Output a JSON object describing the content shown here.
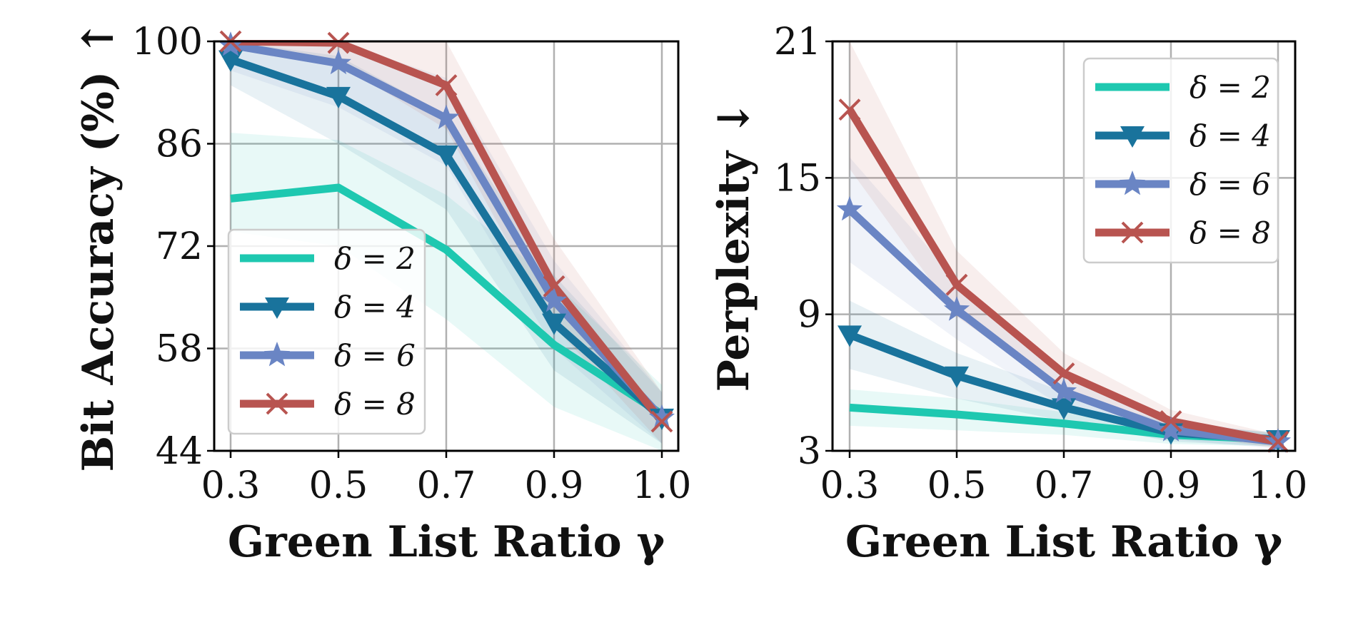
{
  "chart_data": [
    {
      "type": "line",
      "id": "bit-accuracy",
      "title": "",
      "xlabel": "Green List Ratio γ",
      "ylabel": "Bit Accuracy (%) ↑",
      "x": [
        0.3,
        0.5,
        0.7,
        0.9,
        1.0
      ],
      "x_tick_labels": [
        "0.3",
        "0.5",
        "0.7",
        "0.9",
        "1.0"
      ],
      "ylim": [
        44,
        100
      ],
      "y_ticks": [
        44,
        58,
        72,
        86,
        100
      ],
      "grid": true,
      "legend": "lower-left",
      "series": [
        {
          "name": "δ = 2",
          "color": "#1ec8b0",
          "marker": "none",
          "values": [
            78.5,
            80.0,
            71.5,
            58.5,
            49.0
          ],
          "band": [
            [
              74.0,
              87.5
            ],
            [
              72.0,
              86.5
            ],
            [
              62.0,
              79.0
            ],
            [
              50.0,
              67.0
            ],
            [
              44.0,
              53.0
            ]
          ]
        },
        {
          "name": "δ = 4",
          "color": "#19739c",
          "marker": "triangle-down",
          "values": [
            97.5,
            92.5,
            84.5,
            61.5,
            48.5
          ],
          "band": [
            [
              94.0,
              100.0
            ],
            [
              86.0,
              98.0
            ],
            [
              77.0,
              90.0
            ],
            [
              55.0,
              68.0
            ],
            [
              45.0,
              52.0
            ]
          ]
        },
        {
          "name": "δ = 6",
          "color": "#6a85c4",
          "marker": "star",
          "values": [
            99.5,
            97.0,
            89.5,
            64.5,
            48.5
          ],
          "band": [
            [
              96.0,
              100.0
            ],
            [
              91.0,
              100.0
            ],
            [
              83.0,
              95.0
            ],
            [
              58.0,
              70.0
            ],
            [
              45.0,
              52.0
            ]
          ]
        },
        {
          "name": "δ = 8",
          "color": "#b85450",
          "marker": "x",
          "values": [
            100.0,
            99.8,
            94.0,
            66.5,
            48.0
          ],
          "band": [
            [
              99.0,
              100.0
            ],
            [
              97.0,
              100.0
            ],
            [
              88.0,
              100.0
            ],
            [
              61.0,
              73.0
            ],
            [
              45.0,
              52.0
            ]
          ]
        }
      ]
    },
    {
      "type": "line",
      "id": "perplexity",
      "title": "",
      "xlabel": "Green List Ratio γ",
      "ylabel": "Perplexity ↓",
      "x": [
        0.3,
        0.5,
        0.7,
        0.9,
        1.0
      ],
      "x_tick_labels": [
        "0.3",
        "0.5",
        "0.7",
        "0.9",
        "1.0"
      ],
      "ylim": [
        3,
        21
      ],
      "y_ticks": [
        3,
        9,
        15,
        21
      ],
      "grid": true,
      "legend": "upper-right",
      "series": [
        {
          "name": "δ = 2",
          "color": "#1ec8b0",
          "marker": "none",
          "values": [
            4.9,
            4.6,
            4.2,
            3.7,
            3.5
          ],
          "band": [
            [
              4.1,
              5.7
            ],
            [
              3.9,
              5.3
            ],
            [
              3.7,
              4.7
            ],
            [
              3.3,
              4.1
            ],
            [
              3.2,
              3.8
            ]
          ]
        },
        {
          "name": "δ = 4",
          "color": "#19739c",
          "marker": "triangle-down",
          "values": [
            8.1,
            6.3,
            4.9,
            3.8,
            3.5
          ],
          "band": [
            [
              6.6,
              9.6
            ],
            [
              5.3,
              7.3
            ],
            [
              4.3,
              5.6
            ],
            [
              3.4,
              4.2
            ],
            [
              3.2,
              3.8
            ]
          ]
        },
        {
          "name": "δ = 6",
          "color": "#6a85c4",
          "marker": "star",
          "values": [
            13.6,
            9.2,
            5.6,
            3.9,
            3.4
          ],
          "band": [
            [
              11.3,
              15.9
            ],
            [
              7.9,
              10.5
            ],
            [
              4.9,
              6.4
            ],
            [
              3.5,
              4.4
            ],
            [
              3.1,
              3.7
            ]
          ]
        },
        {
          "name": "δ = 8",
          "color": "#b85450",
          "marker": "x",
          "values": [
            18.0,
            10.3,
            6.4,
            4.3,
            3.4
          ],
          "band": [
            [
              15.4,
              21.0
            ],
            [
              8.9,
              11.8
            ],
            [
              5.6,
              7.3
            ],
            [
              3.8,
              4.8
            ],
            [
              3.1,
              3.7
            ]
          ]
        }
      ]
    }
  ]
}
